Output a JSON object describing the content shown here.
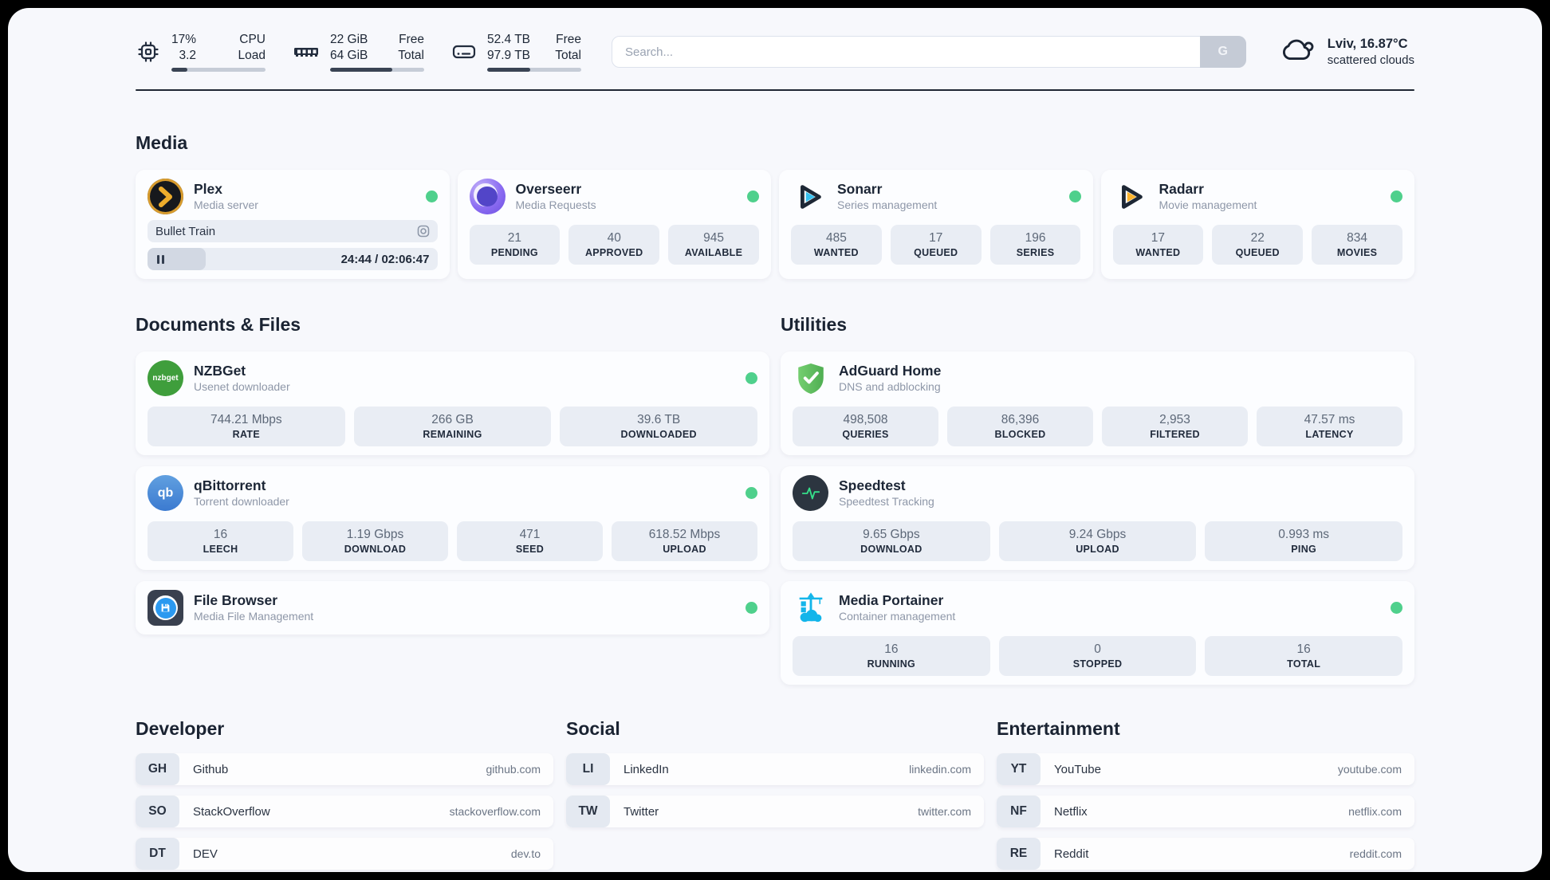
{
  "header": {
    "system_stats": [
      {
        "id": "cpu",
        "icon": "cpu-icon",
        "top_value": "17%",
        "bottom_value": "3.2",
        "top_label": "CPU",
        "bottom_label": "Load",
        "progress_pct": 17
      },
      {
        "id": "memory",
        "icon": "memory-icon",
        "top_value": "22 GiB",
        "bottom_value": "64 GiB",
        "top_label": "Free",
        "bottom_label": "Total",
        "progress_pct": 66
      },
      {
        "id": "disk",
        "icon": "disk-icon",
        "top_value": "52.4 TB",
        "bottom_value": "97.9 TB",
        "top_label": "Free",
        "bottom_label": "Total",
        "progress_pct": 46
      }
    ],
    "search": {
      "placeholder": "Search...",
      "button_label": "G"
    },
    "weather": {
      "summary": "Lviv, 16.87°C",
      "condition": "scattered clouds"
    }
  },
  "sections": {
    "media": "Media",
    "documents": "Documents & Files",
    "utilities": "Utilities",
    "developer": "Developer",
    "social": "Social",
    "entertainment": "Entertainment"
  },
  "apps": {
    "plex": {
      "name": "Plex",
      "description": "Media server",
      "online": true,
      "now_playing": "Bullet Train",
      "time_display": "24:44 / 02:06:47",
      "progress_pct": 20
    },
    "overseerr": {
      "name": "Overseerr",
      "description": "Media Requests",
      "online": true,
      "stats": [
        {
          "value": "21",
          "label": "PENDING"
        },
        {
          "value": "40",
          "label": "APPROVED"
        },
        {
          "value": "945",
          "label": "AVAILABLE"
        }
      ]
    },
    "sonarr": {
      "name": "Sonarr",
      "description": "Series management",
      "online": true,
      "stats": [
        {
          "value": "485",
          "label": "WANTED"
        },
        {
          "value": "17",
          "label": "QUEUED"
        },
        {
          "value": "196",
          "label": "SERIES"
        }
      ]
    },
    "radarr": {
      "name": "Radarr",
      "description": "Movie management",
      "online": true,
      "stats": [
        {
          "value": "17",
          "label": "WANTED"
        },
        {
          "value": "22",
          "label": "QUEUED"
        },
        {
          "value": "834",
          "label": "MOVIES"
        }
      ]
    },
    "nzbget": {
      "name": "NZBGet",
      "description": "Usenet downloader",
      "online": true,
      "logo_text": "nzbget",
      "stats": [
        {
          "value": "744.21 Mbps",
          "label": "RATE"
        },
        {
          "value": "266 GB",
          "label": "REMAINING"
        },
        {
          "value": "39.6 TB",
          "label": "DOWNLOADED"
        }
      ]
    },
    "qbittorrent": {
      "name": "qBittorrent",
      "description": "Torrent downloader",
      "online": true,
      "logo_text": "qb",
      "stats": [
        {
          "value": "16",
          "label": "LEECH"
        },
        {
          "value": "1.19 Gbps",
          "label": "DOWNLOAD"
        },
        {
          "value": "471",
          "label": "SEED"
        },
        {
          "value": "618.52 Mbps",
          "label": "UPLOAD"
        }
      ]
    },
    "filebrowser": {
      "name": "File Browser",
      "description": "Media File Management",
      "online": true
    },
    "adguard": {
      "name": "AdGuard Home",
      "description": "DNS and adblocking",
      "stats": [
        {
          "value": "498,508",
          "label": "QUERIES"
        },
        {
          "value": "86,396",
          "label": "BLOCKED"
        },
        {
          "value": "2,953",
          "label": "FILTERED"
        },
        {
          "value": "47.57 ms",
          "label": "LATENCY"
        }
      ]
    },
    "speedtest": {
      "name": "Speedtest",
      "description": "Speedtest Tracking",
      "stats": [
        {
          "value": "9.65 Gbps",
          "label": "DOWNLOAD"
        },
        {
          "value": "9.24 Gbps",
          "label": "UPLOAD"
        },
        {
          "value": "0.993 ms",
          "label": "PING"
        }
      ]
    },
    "portainer": {
      "name": "Media Portainer",
      "description": "Container management",
      "online": true,
      "stats": [
        {
          "value": "16",
          "label": "RUNNING"
        },
        {
          "value": "0",
          "label": "STOPPED"
        },
        {
          "value": "16",
          "label": "TOTAL"
        }
      ]
    }
  },
  "bookmarks": {
    "developer": [
      {
        "abbr": "GH",
        "name": "Github",
        "url": "github.com"
      },
      {
        "abbr": "SO",
        "name": "StackOverflow",
        "url": "stackoverflow.com"
      },
      {
        "abbr": "DT",
        "name": "DEV",
        "url": "dev.to"
      }
    ],
    "social": [
      {
        "abbr": "LI",
        "name": "LinkedIn",
        "url": "linkedin.com"
      },
      {
        "abbr": "TW",
        "name": "Twitter",
        "url": "twitter.com"
      }
    ],
    "entertainment": [
      {
        "abbr": "YT",
        "name": "YouTube",
        "url": "youtube.com"
      },
      {
        "abbr": "NF",
        "name": "Netflix",
        "url": "netflix.com"
      },
      {
        "abbr": "RE",
        "name": "Reddit",
        "url": "reddit.com"
      }
    ]
  },
  "colors": {
    "status_online": "#4fd08c",
    "plex": "#d89c2e",
    "overseerr": "#8b6cf2",
    "sonarr": "#38c1ef",
    "radarr": "#fcb42e",
    "nzbget": "#3f9e3c",
    "qbittorrent": "#3b7ad0",
    "adguard": "#5cb85f",
    "speedtest": "#35e08a",
    "portainer": "#13b5ea"
  }
}
